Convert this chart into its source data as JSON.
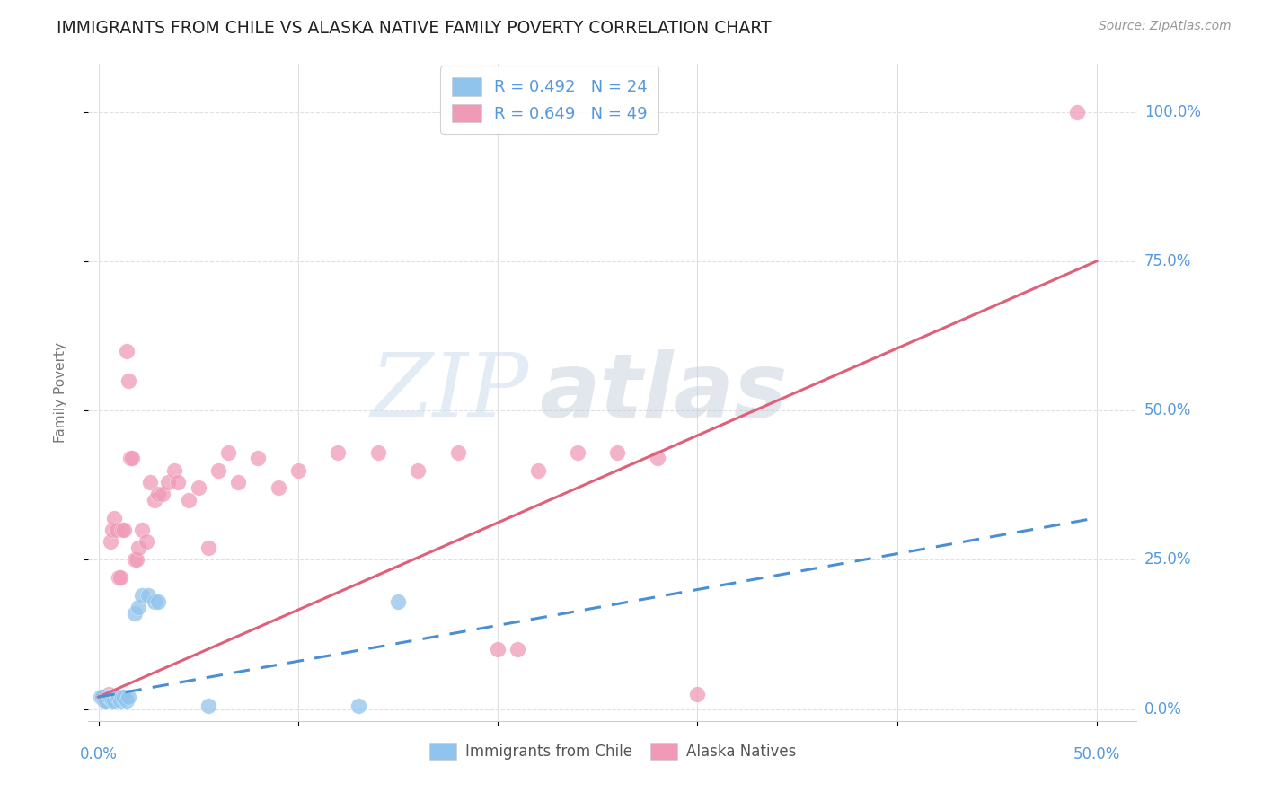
{
  "title": "IMMIGRANTS FROM CHILE VS ALASKA NATIVE FAMILY POVERTY CORRELATION CHART",
  "source": "Source: ZipAtlas.com",
  "ylabel": "Family Poverty",
  "yticks": [
    "0.0%",
    "25.0%",
    "50.0%",
    "75.0%",
    "100.0%"
  ],
  "ytick_vals": [
    0.0,
    0.25,
    0.5,
    0.75,
    1.0
  ],
  "xtick_labels": [
    "0.0%",
    "50.0%"
  ],
  "xtick_positions": [
    0.0,
    0.5
  ],
  "xlim": [
    -0.005,
    0.52
  ],
  "ylim": [
    -0.02,
    1.08
  ],
  "legend_entries": [
    {
      "label": "R = 0.492   N = 24",
      "color": "#a8d0f0"
    },
    {
      "label": "R = 0.649   N = 49",
      "color": "#f5b0c8"
    }
  ],
  "legend_bottom": [
    {
      "label": "Immigrants from Chile",
      "color": "#a8d0f0"
    },
    {
      "label": "Alaska Natives",
      "color": "#f5b0c8"
    }
  ],
  "blue_scatter": [
    [
      0.001,
      0.02
    ],
    [
      0.002,
      0.02
    ],
    [
      0.003,
      0.015
    ],
    [
      0.004,
      0.015
    ],
    [
      0.005,
      0.02
    ],
    [
      0.006,
      0.02
    ],
    [
      0.007,
      0.015
    ],
    [
      0.008,
      0.015
    ],
    [
      0.009,
      0.02
    ],
    [
      0.01,
      0.02
    ],
    [
      0.011,
      0.015
    ],
    [
      0.012,
      0.02
    ],
    [
      0.013,
      0.02
    ],
    [
      0.014,
      0.015
    ],
    [
      0.015,
      0.02
    ],
    [
      0.018,
      0.16
    ],
    [
      0.02,
      0.17
    ],
    [
      0.022,
      0.19
    ],
    [
      0.025,
      0.19
    ],
    [
      0.028,
      0.18
    ],
    [
      0.03,
      0.18
    ],
    [
      0.055,
      0.005
    ],
    [
      0.13,
      0.005
    ],
    [
      0.15,
      0.18
    ]
  ],
  "pink_scatter": [
    [
      0.002,
      0.02
    ],
    [
      0.003,
      0.015
    ],
    [
      0.004,
      0.02
    ],
    [
      0.005,
      0.025
    ],
    [
      0.006,
      0.28
    ],
    [
      0.007,
      0.3
    ],
    [
      0.008,
      0.32
    ],
    [
      0.009,
      0.3
    ],
    [
      0.01,
      0.22
    ],
    [
      0.011,
      0.22
    ],
    [
      0.012,
      0.3
    ],
    [
      0.013,
      0.3
    ],
    [
      0.014,
      0.6
    ],
    [
      0.015,
      0.55
    ],
    [
      0.016,
      0.42
    ],
    [
      0.017,
      0.42
    ],
    [
      0.018,
      0.25
    ],
    [
      0.019,
      0.25
    ],
    [
      0.02,
      0.27
    ],
    [
      0.022,
      0.3
    ],
    [
      0.024,
      0.28
    ],
    [
      0.026,
      0.38
    ],
    [
      0.028,
      0.35
    ],
    [
      0.03,
      0.36
    ],
    [
      0.032,
      0.36
    ],
    [
      0.035,
      0.38
    ],
    [
      0.038,
      0.4
    ],
    [
      0.04,
      0.38
    ],
    [
      0.045,
      0.35
    ],
    [
      0.05,
      0.37
    ],
    [
      0.055,
      0.27
    ],
    [
      0.06,
      0.4
    ],
    [
      0.065,
      0.43
    ],
    [
      0.07,
      0.38
    ],
    [
      0.08,
      0.42
    ],
    [
      0.09,
      0.37
    ],
    [
      0.1,
      0.4
    ],
    [
      0.12,
      0.43
    ],
    [
      0.14,
      0.43
    ],
    [
      0.16,
      0.4
    ],
    [
      0.18,
      0.43
    ],
    [
      0.2,
      0.1
    ],
    [
      0.21,
      0.1
    ],
    [
      0.22,
      0.4
    ],
    [
      0.24,
      0.43
    ],
    [
      0.26,
      0.43
    ],
    [
      0.28,
      0.42
    ],
    [
      0.3,
      0.025
    ],
    [
      0.49,
      1.0
    ]
  ],
  "blue_line": {
    "x0": 0.0,
    "y0": 0.02,
    "x1": 0.5,
    "y1": 0.32
  },
  "pink_line": {
    "x0": 0.0,
    "y0": 0.02,
    "x1": 0.5,
    "y1": 0.75
  },
  "watermark_zip": "ZIP",
  "watermark_atlas": "atlas",
  "background_color": "#ffffff",
  "grid_color": "#e0e0e0",
  "blue_scatter_color": "#90c4ec",
  "pink_scatter_color": "#f09ab8",
  "blue_line_color": "#4a8fd4",
  "pink_line_color": "#e0607a",
  "title_color": "#222222",
  "source_color": "#999999",
  "tick_color": "#5599dd",
  "ylabel_color": "#777777"
}
